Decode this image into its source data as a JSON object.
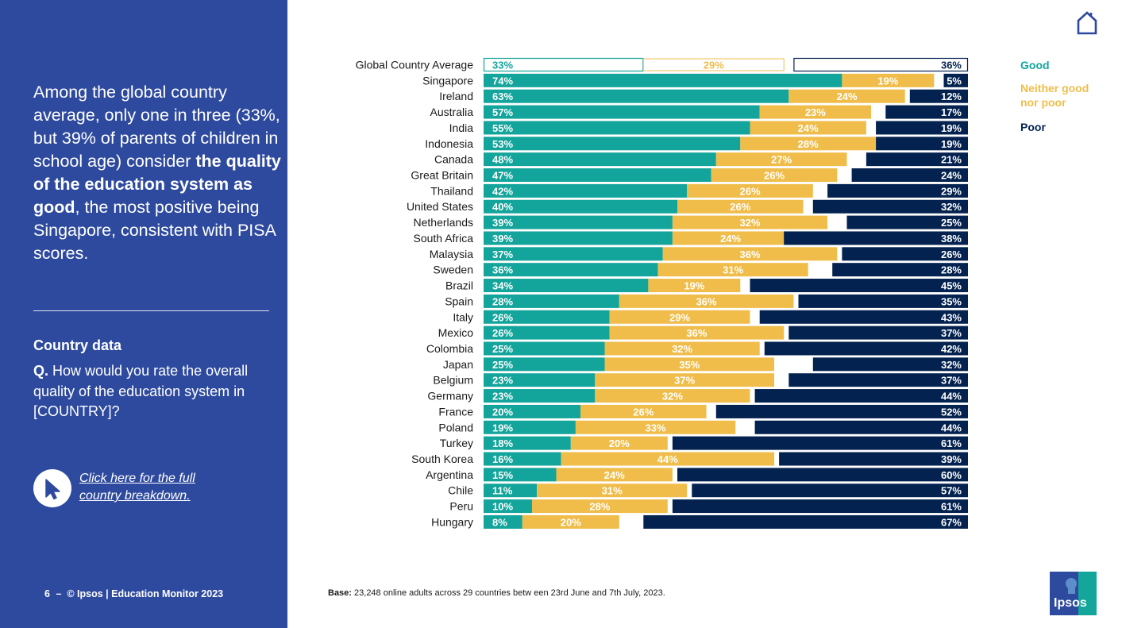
{
  "headline": {
    "part1": "Among the global country average, only one in three (33%, but 39% of parents of children in school age) consider ",
    "bold": "the quality of the education system as good",
    "part2": ", the most positive being Singapore, consistent with PISA scores."
  },
  "section_title": "Country data",
  "question": {
    "prefix": "Q.",
    "text": " How would you rate the overall quality of the education system in [COUNTRY]?"
  },
  "link_text": "Click here for the full country breakdown.",
  "footer": {
    "page": "6",
    "sep": "–",
    "text": "© Ipsos | Education Monitor 2023"
  },
  "legend": [
    {
      "label": "Good",
      "color": "#13a49b"
    },
    {
      "label": "Neither good nor poor",
      "color": "#f0bd4b"
    },
    {
      "label": "Poor",
      "color": "#04224f"
    }
  ],
  "base_note": {
    "label": "Base:",
    "text": " 23,248 online adults across 29 countries betw een 23rd June and 7th July, 2023."
  },
  "logo_text": "Ipsos",
  "colors": {
    "sidebar": "#2e4a9e",
    "good": "#13a49b",
    "neither": "#f0bd4b",
    "poor": "#04224f"
  },
  "chart_data": {
    "type": "bar",
    "orientation": "horizontal-stacked",
    "categories": [
      "Global Country Average",
      "Singapore",
      "Ireland",
      "Australia",
      "India",
      "Indonesia",
      "Canada",
      "Great Britain",
      "Thailand",
      "United States",
      "Netherlands",
      "South Africa",
      "Malaysia",
      "Sweden",
      "Brazil",
      "Spain",
      "Italy",
      "Mexico",
      "Colombia",
      "Japan",
      "Belgium",
      "Germany",
      "France",
      "Poland",
      "Turkey",
      "South Korea",
      "Argentina",
      "Chile",
      "Peru",
      "Hungary"
    ],
    "series": [
      {
        "name": "Good",
        "values": [
          33,
          74,
          63,
          57,
          55,
          53,
          48,
          47,
          42,
          40,
          39,
          39,
          37,
          36,
          34,
          28,
          26,
          26,
          25,
          25,
          23,
          23,
          20,
          19,
          18,
          16,
          15,
          11,
          10,
          8
        ]
      },
      {
        "name": "Neither good nor poor",
        "values": [
          29,
          19,
          24,
          23,
          24,
          28,
          27,
          26,
          26,
          26,
          32,
          24,
          36,
          31,
          19,
          36,
          29,
          36,
          32,
          35,
          37,
          32,
          26,
          33,
          20,
          44,
          24,
          31,
          28,
          20
        ]
      },
      {
        "name": "Poor",
        "values": [
          36,
          5,
          12,
          17,
          19,
          19,
          21,
          24,
          29,
          32,
          25,
          38,
          26,
          28,
          45,
          35,
          43,
          37,
          42,
          32,
          37,
          44,
          52,
          44,
          61,
          39,
          60,
          57,
          61,
          67
        ]
      }
    ],
    "value_suffix": "%",
    "xlim": [
      0,
      100
    ],
    "highlighted_category": "Global Country Average"
  }
}
